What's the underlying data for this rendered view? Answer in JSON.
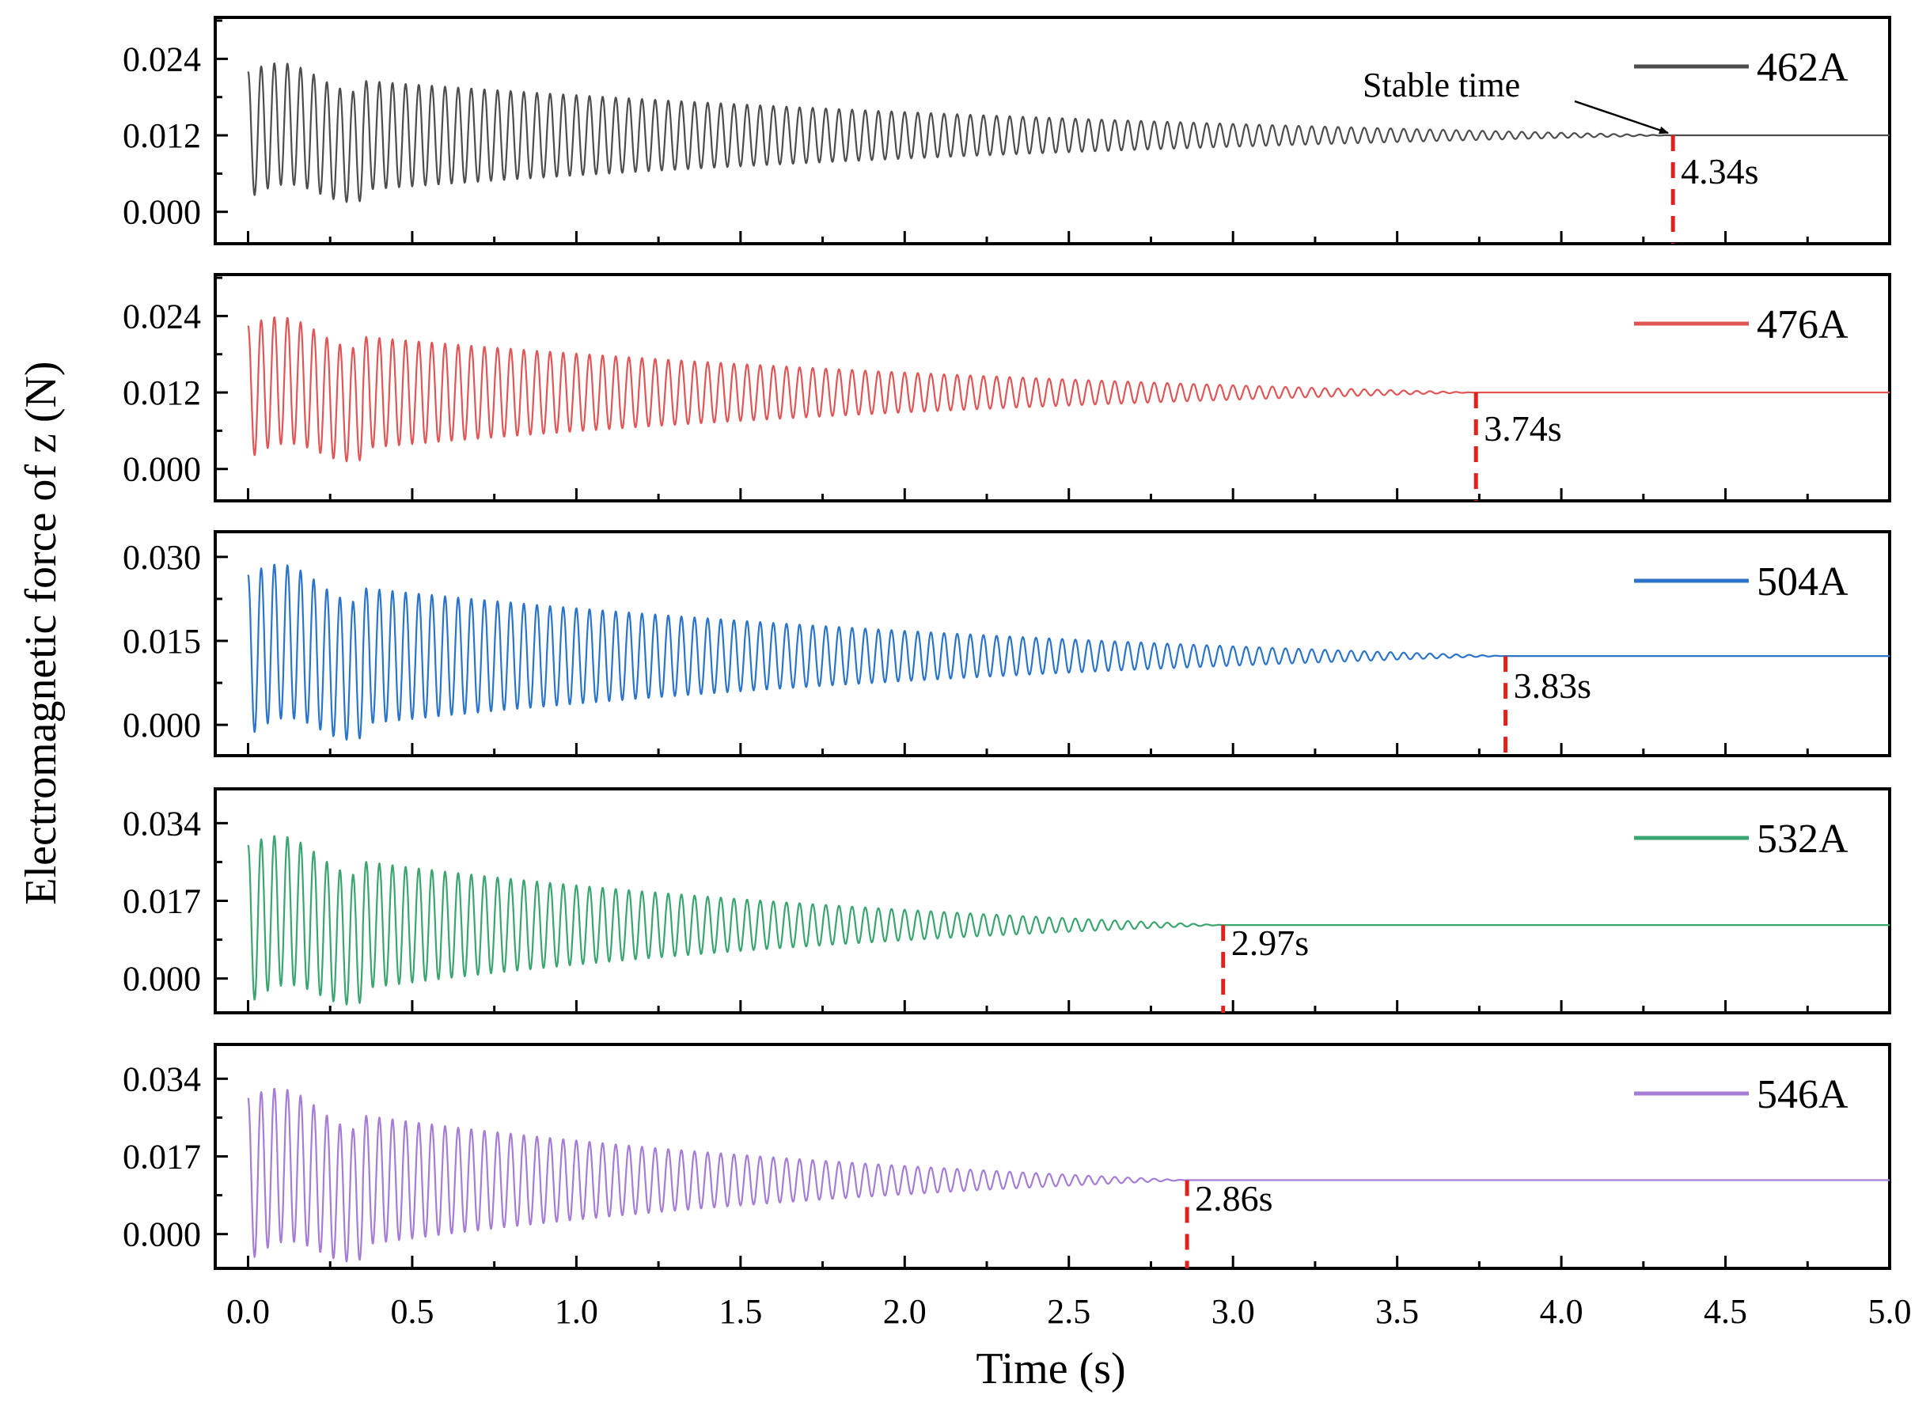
{
  "chart_data": {
    "type": "line",
    "title": "",
    "xlabel": "Time (s)",
    "ylabel": "Electromagnetic force of z (N)",
    "xlim": [
      -0.1,
      5.0
    ],
    "xticks": [
      0.0,
      0.5,
      1.0,
      1.5,
      2.0,
      2.5,
      3.0,
      3.5,
      4.0,
      4.5,
      5.0
    ],
    "xtick_labels": [
      "0.0",
      "0.5",
      "1.0",
      "1.5",
      "2.0",
      "2.5",
      "3.0",
      "3.5",
      "4.0",
      "4.5",
      "5.0"
    ],
    "oscillation_period_s": 0.04,
    "annotation": {
      "text": "Stable time",
      "target_panel": 0
    },
    "series": [
      {
        "name": "462A",
        "color": "#4d4d4d",
        "ylim": [
          -0.005,
          0.0305
        ],
        "yticks": [
          0.0,
          0.012,
          0.024
        ],
        "ytick_labels": [
          "0.000",
          "0.012",
          "0.024"
        ],
        "steady_value": 0.012,
        "initial_amplitude": 0.01,
        "stable_time": 4.34,
        "stable_time_label": "4.34s"
      },
      {
        "name": "476A",
        "color": "#e05555",
        "ylim": [
          -0.005,
          0.0305
        ],
        "yticks": [
          0.0,
          0.012,
          0.024
        ],
        "ytick_labels": [
          "0.000",
          "0.012",
          "0.024"
        ],
        "steady_value": 0.012,
        "initial_amplitude": 0.0105,
        "stable_time": 3.74,
        "stable_time_label": "3.74s"
      },
      {
        "name": "504A",
        "color": "#2a74c9",
        "ylim": [
          -0.0055,
          0.0345
        ],
        "yticks": [
          0.0,
          0.015,
          0.03
        ],
        "ytick_labels": [
          "0.000",
          "0.015",
          "0.030"
        ],
        "steady_value": 0.0123,
        "initial_amplitude": 0.0145,
        "stable_time": 3.83,
        "stable_time_label": "3.83s"
      },
      {
        "name": "532A",
        "color": "#3aa56f",
        "ylim": [
          -0.0075,
          0.0415
        ],
        "yticks": [
          0.0,
          0.017,
          0.034
        ],
        "ytick_labels": [
          "0.000",
          "0.017",
          "0.034"
        ],
        "steady_value": 0.0117,
        "initial_amplitude": 0.0175,
        "stable_time": 2.97,
        "stable_time_label": "2.97s"
      },
      {
        "name": "546A",
        "color": "#a57cd6",
        "ylim": [
          -0.0075,
          0.0415
        ],
        "yticks": [
          0.0,
          0.017,
          0.034
        ],
        "ytick_labels": [
          "0.000",
          "0.017",
          "0.034"
        ],
        "steady_value": 0.0118,
        "initial_amplitude": 0.018,
        "stable_time": 2.86,
        "stable_time_label": "2.86s"
      }
    ]
  }
}
